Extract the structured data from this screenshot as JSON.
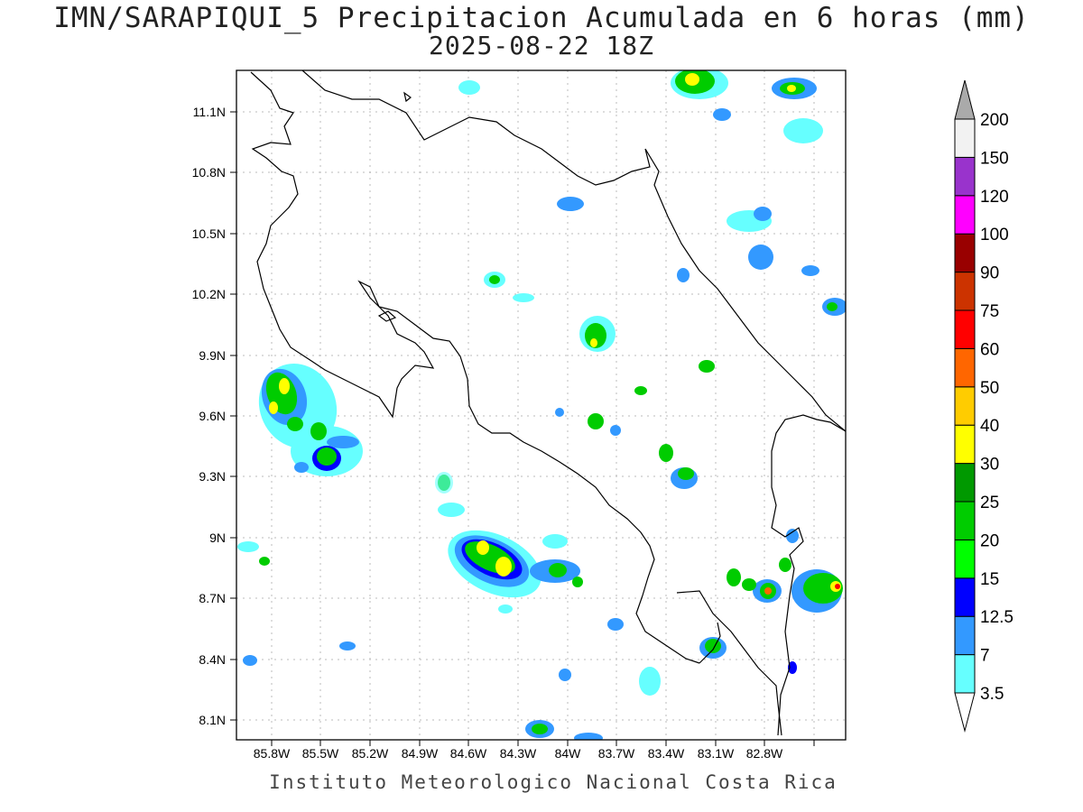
{
  "title": {
    "line1": "IMN/SARAPIQUI_5 Precipitacion Acumulada en 6 horas (mm)",
    "line2": "2025-08-22 18Z"
  },
  "footer": "Instituto Meteorologico Nacional Costa Rica",
  "map": {
    "lat_labels": [
      "11.1N",
      "10.8N",
      "10.5N",
      "10.2N",
      "9.9N",
      "9.6N",
      "9.3N",
      "9N",
      "8.7N",
      "8.4N",
      "8.1N"
    ],
    "lon_labels": [
      "85.8W",
      "85.5W",
      "85.2W",
      "84.9W",
      "84.6W",
      "84.3W",
      "84W",
      "83.7W",
      "83.4W",
      "83.1W",
      "82.8W"
    ]
  },
  "colorbar": {
    "labels": [
      "3.5",
      "7",
      "12.5",
      "15",
      "20",
      "25",
      "30",
      "40",
      "50",
      "60",
      "75",
      "90",
      "100",
      "120",
      "150",
      "200"
    ],
    "colors": [
      "#66ffff",
      "#3399ff",
      "#0000ff",
      "#00ff00",
      "#00cc00",
      "#009900",
      "#ffff00",
      "#ffcc00",
      "#ff6600",
      "#ff0000",
      "#cc3300",
      "#990000",
      "#ff00ff",
      "#9933cc",
      "#f2f2f2"
    ],
    "top_arrow_color": "#aaaaaa",
    "bottom_arrow_color": "#ffffff"
  }
}
